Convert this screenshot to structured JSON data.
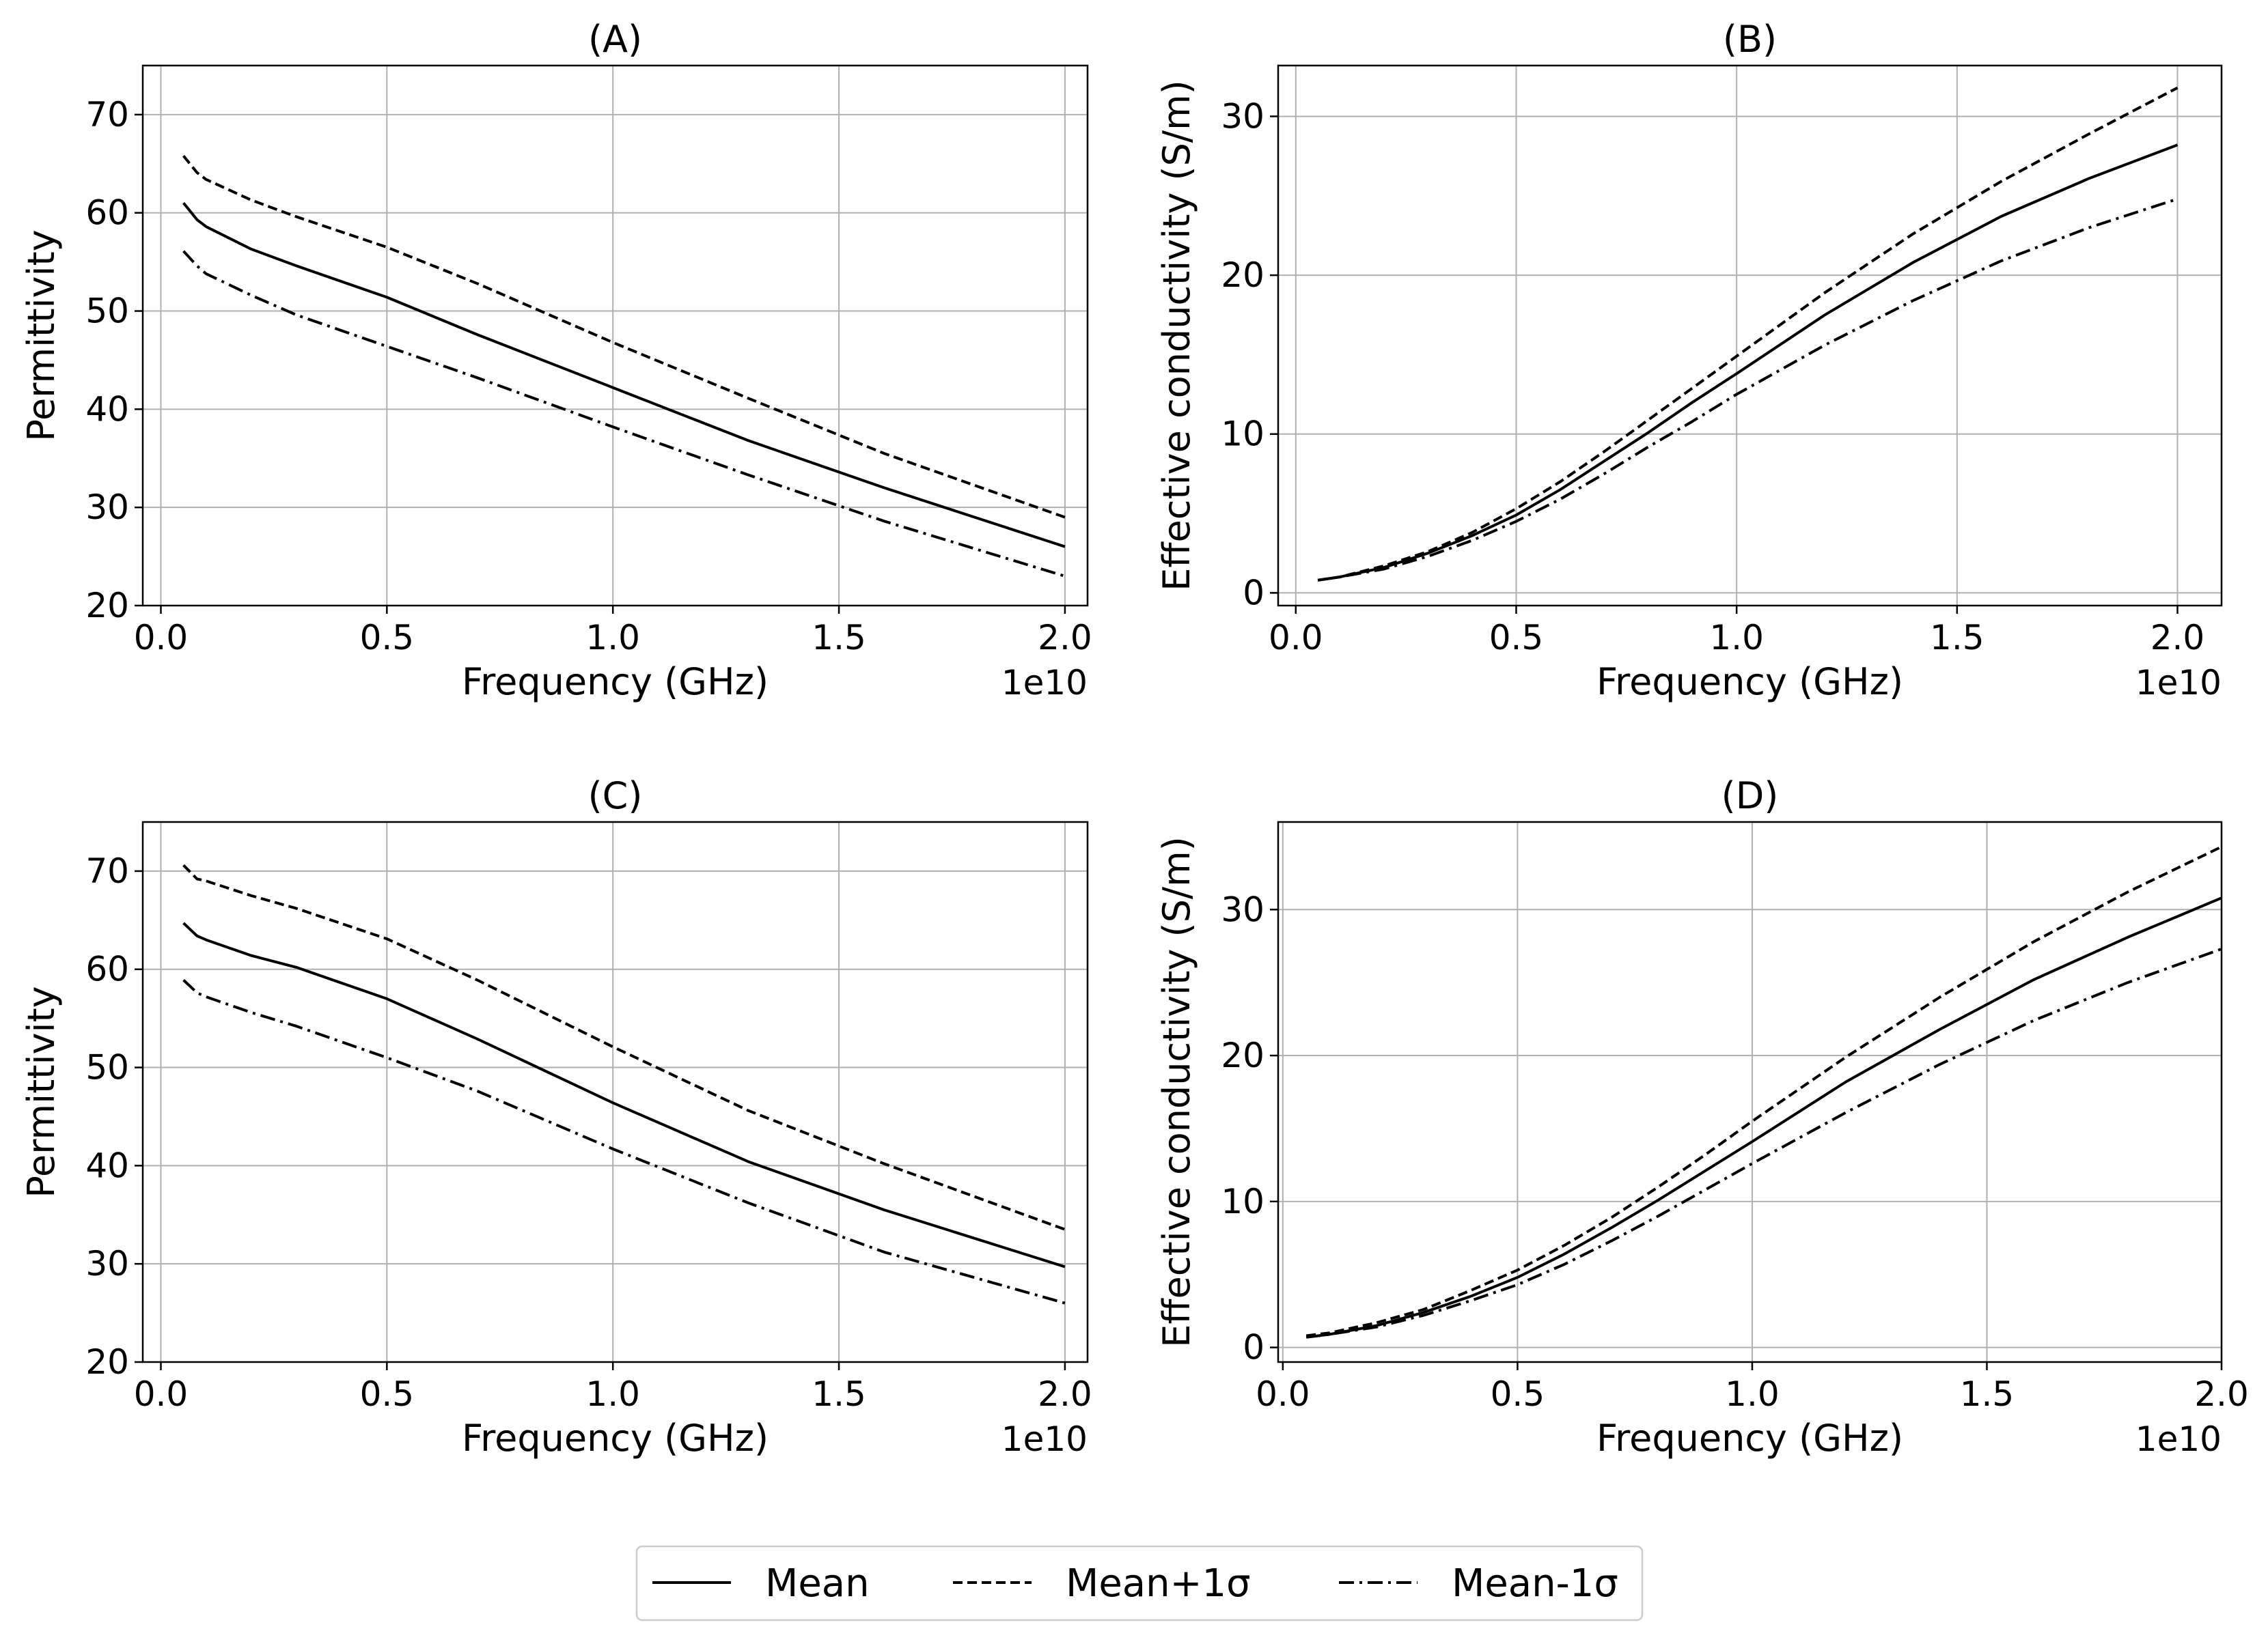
{
  "legend": {
    "placement": "bottom-center",
    "items": [
      {
        "label": "Mean",
        "style": "solid"
      },
      {
        "label": "Mean+1σ",
        "style": "dashed"
      },
      {
        "label": "Mean-1σ",
        "style": "dashdot"
      }
    ]
  },
  "chart_data": [
    {
      "id": "A",
      "type": "line",
      "title": "(A)",
      "xlabel": "Frequency (GHz)",
      "ylabel": "Permittivity",
      "x_offset_label": "1e10",
      "xlim": [
        -0.04,
        2.05
      ],
      "ylim": [
        20,
        75
      ],
      "xticks": [
        0.0,
        0.5,
        1.0,
        1.5,
        2.0
      ],
      "xtick_labels": [
        "0.0",
        "0.5",
        "1.0",
        "1.5",
        "2.0"
      ],
      "yticks": [
        20,
        30,
        40,
        50,
        60,
        70
      ],
      "ytick_labels": [
        "20",
        "30",
        "40",
        "50",
        "60",
        "70"
      ],
      "grid": true,
      "x": [
        0.05,
        0.08,
        0.1,
        0.2,
        0.3,
        0.5,
        0.7,
        1.0,
        1.3,
        1.6,
        2.0
      ],
      "series": [
        {
          "name": "Mean",
          "style": "solid",
          "values": [
            61.0,
            59.3,
            58.6,
            56.3,
            54.6,
            51.4,
            47.6,
            42.2,
            36.8,
            32.0,
            26.0
          ]
        },
        {
          "name": "Mean+1σ",
          "style": "dashed",
          "values": [
            65.8,
            64.1,
            63.4,
            61.3,
            59.6,
            56.5,
            52.8,
            46.8,
            41.1,
            35.5,
            29.0
          ]
        },
        {
          "name": "Mean-1σ",
          "style": "dashdot",
          "values": [
            56.1,
            54.6,
            53.8,
            51.6,
            49.6,
            46.4,
            43.2,
            38.2,
            33.3,
            28.6,
            23.0
          ]
        }
      ]
    },
    {
      "id": "B",
      "type": "line",
      "title": "(B)",
      "xlabel": "Frequency (GHz)",
      "ylabel": "Effective conductivity (S/m)",
      "x_offset_label": "1e10",
      "xlim": [
        -0.04,
        2.1
      ],
      "ylim": [
        -0.8,
        33.2
      ],
      "xticks": [
        0.0,
        0.5,
        1.0,
        1.5,
        2.0
      ],
      "xtick_labels": [
        "0.0",
        "0.5",
        "1.0",
        "1.5",
        "2.0"
      ],
      "yticks": [
        0,
        10,
        20,
        30
      ],
      "ytick_labels": [
        "0",
        "10",
        "20",
        "30"
      ],
      "grid": true,
      "x": [
        0.05,
        0.1,
        0.2,
        0.3,
        0.4,
        0.5,
        0.6,
        0.7,
        0.8,
        0.9,
        1.0,
        1.2,
        1.4,
        1.6,
        1.8,
        2.0
      ],
      "series": [
        {
          "name": "Mean",
          "style": "solid",
          "values": [
            0.8,
            1.0,
            1.6,
            2.5,
            3.6,
            4.9,
            6.5,
            8.3,
            10.1,
            12.0,
            13.8,
            17.5,
            20.8,
            23.7,
            26.1,
            28.2
          ]
        },
        {
          "name": "Mean+1σ",
          "style": "dashed",
          "values": [
            0.8,
            1.0,
            1.7,
            2.6,
            3.8,
            5.3,
            7.0,
            8.9,
            10.9,
            12.9,
            14.9,
            18.9,
            22.6,
            25.9,
            28.9,
            31.8
          ]
        },
        {
          "name": "Mean-1σ",
          "style": "dashdot",
          "values": [
            0.8,
            1.0,
            1.5,
            2.3,
            3.3,
            4.5,
            5.9,
            7.5,
            9.2,
            10.8,
            12.5,
            15.6,
            18.4,
            20.9,
            23.0,
            24.8
          ]
        }
      ]
    },
    {
      "id": "C",
      "type": "line",
      "title": "(C)",
      "xlabel": "Frequency (GHz)",
      "ylabel": "Permittivity",
      "x_offset_label": "1e10",
      "xlim": [
        -0.04,
        2.05
      ],
      "ylim": [
        20,
        75
      ],
      "xticks": [
        0.0,
        0.5,
        1.0,
        1.5,
        2.0
      ],
      "xtick_labels": [
        "0.0",
        "0.5",
        "1.0",
        "1.5",
        "2.0"
      ],
      "yticks": [
        20,
        30,
        40,
        50,
        60,
        70
      ],
      "ytick_labels": [
        "20",
        "30",
        "40",
        "50",
        "60",
        "70"
      ],
      "grid": true,
      "x": [
        0.05,
        0.08,
        0.1,
        0.2,
        0.3,
        0.5,
        0.7,
        1.0,
        1.3,
        1.6,
        2.0
      ],
      "series": [
        {
          "name": "Mean",
          "style": "solid",
          "values": [
            64.7,
            63.4,
            63.0,
            61.4,
            60.2,
            57.0,
            52.9,
            46.4,
            40.4,
            35.5,
            29.7
          ]
        },
        {
          "name": "Mean+1σ",
          "style": "dashed",
          "values": [
            70.6,
            69.2,
            69.0,
            67.5,
            66.2,
            63.1,
            58.9,
            52.1,
            45.6,
            40.2,
            33.5
          ]
        },
        {
          "name": "Mean-1σ",
          "style": "dashdot",
          "values": [
            58.9,
            57.6,
            57.2,
            55.6,
            54.2,
            51.0,
            47.6,
            41.7,
            36.2,
            31.2,
            26.0
          ]
        }
      ]
    },
    {
      "id": "D",
      "type": "line",
      "title": "(D)",
      "xlabel": "Frequency (GHz)",
      "ylabel": "Effective conductivity (S/m)",
      "x_offset_label": "1e10",
      "xlim": [
        -0.01,
        2.0
      ],
      "ylim": [
        -1,
        36
      ],
      "xticks": [
        0.0,
        0.5,
        1.0,
        1.5,
        2.0
      ],
      "xtick_labels": [
        "0.0",
        "0.5",
        "1.0",
        "1.5",
        "2.0"
      ],
      "yticks": [
        0,
        10,
        20,
        30
      ],
      "ytick_labels": [
        "0",
        "10",
        "20",
        "30"
      ],
      "grid": true,
      "x": [
        0.05,
        0.1,
        0.2,
        0.3,
        0.4,
        0.5,
        0.6,
        0.7,
        0.8,
        0.9,
        1.0,
        1.2,
        1.4,
        1.6,
        1.8,
        2.0
      ],
      "series": [
        {
          "name": "Mean",
          "style": "solid",
          "values": [
            0.7,
            0.9,
            1.5,
            2.4,
            3.5,
            4.8,
            6.4,
            8.2,
            10.1,
            12.1,
            14.1,
            18.2,
            21.8,
            25.2,
            28.1,
            30.8
          ]
        },
        {
          "name": "Mean+1σ",
          "style": "dashed",
          "values": [
            0.8,
            1.0,
            1.7,
            2.6,
            3.9,
            5.3,
            7.0,
            8.9,
            11.0,
            13.2,
            15.5,
            19.9,
            24.0,
            27.8,
            31.2,
            34.3
          ]
        },
        {
          "name": "Mean-1σ",
          "style": "dashdot",
          "values": [
            0.7,
            0.9,
            1.4,
            2.2,
            3.2,
            4.3,
            5.7,
            7.3,
            9.0,
            10.8,
            12.6,
            16.1,
            19.4,
            22.4,
            25.0,
            27.3
          ]
        }
      ]
    }
  ]
}
